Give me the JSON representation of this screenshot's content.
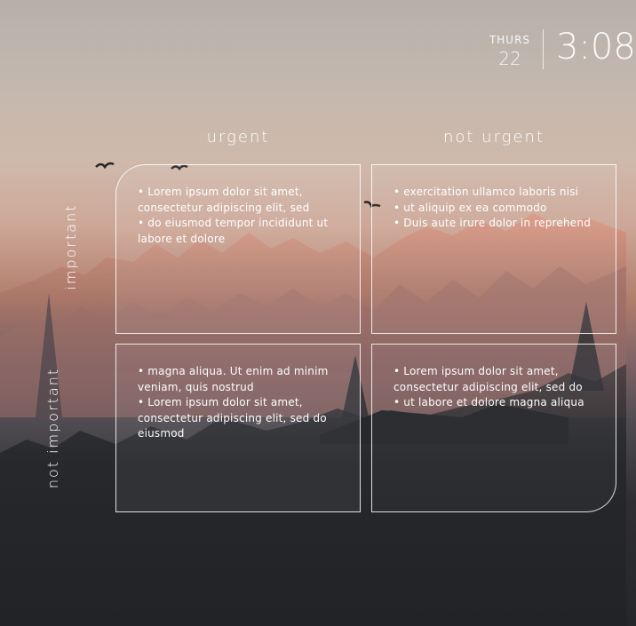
{
  "clock": {
    "day": "THURS",
    "date": "22",
    "time": "3:08"
  },
  "headers": {
    "urgent": "urgent",
    "not_urgent": "not urgent",
    "important": "important",
    "not_important": "not important"
  },
  "quadrants": {
    "urgent_important": [
      "• Lorem ipsum dolor sit amet, consectetur adipiscing elit, sed",
      "• do eiusmod tempor incididunt ut labore et dolore"
    ],
    "not_urgent_important": [
      "• exercitation ullamco laboris nisi",
      "• ut aliquip ex ea commodo",
      "• Duis aute irure dolor in reprehend"
    ],
    "urgent_not_important": [
      "• magna aliqua. Ut enim ad minim veniam, quis nostrud",
      "• Lorem ipsum dolor sit amet, consectetur adipiscing elit, sed do eiusmod"
    ],
    "not_urgent_not_important": [
      "• Lorem ipsum dolor sit amet, consectetur adipiscing elit, sed do",
      "• ut labore et dolore magna aliqua"
    ]
  }
}
